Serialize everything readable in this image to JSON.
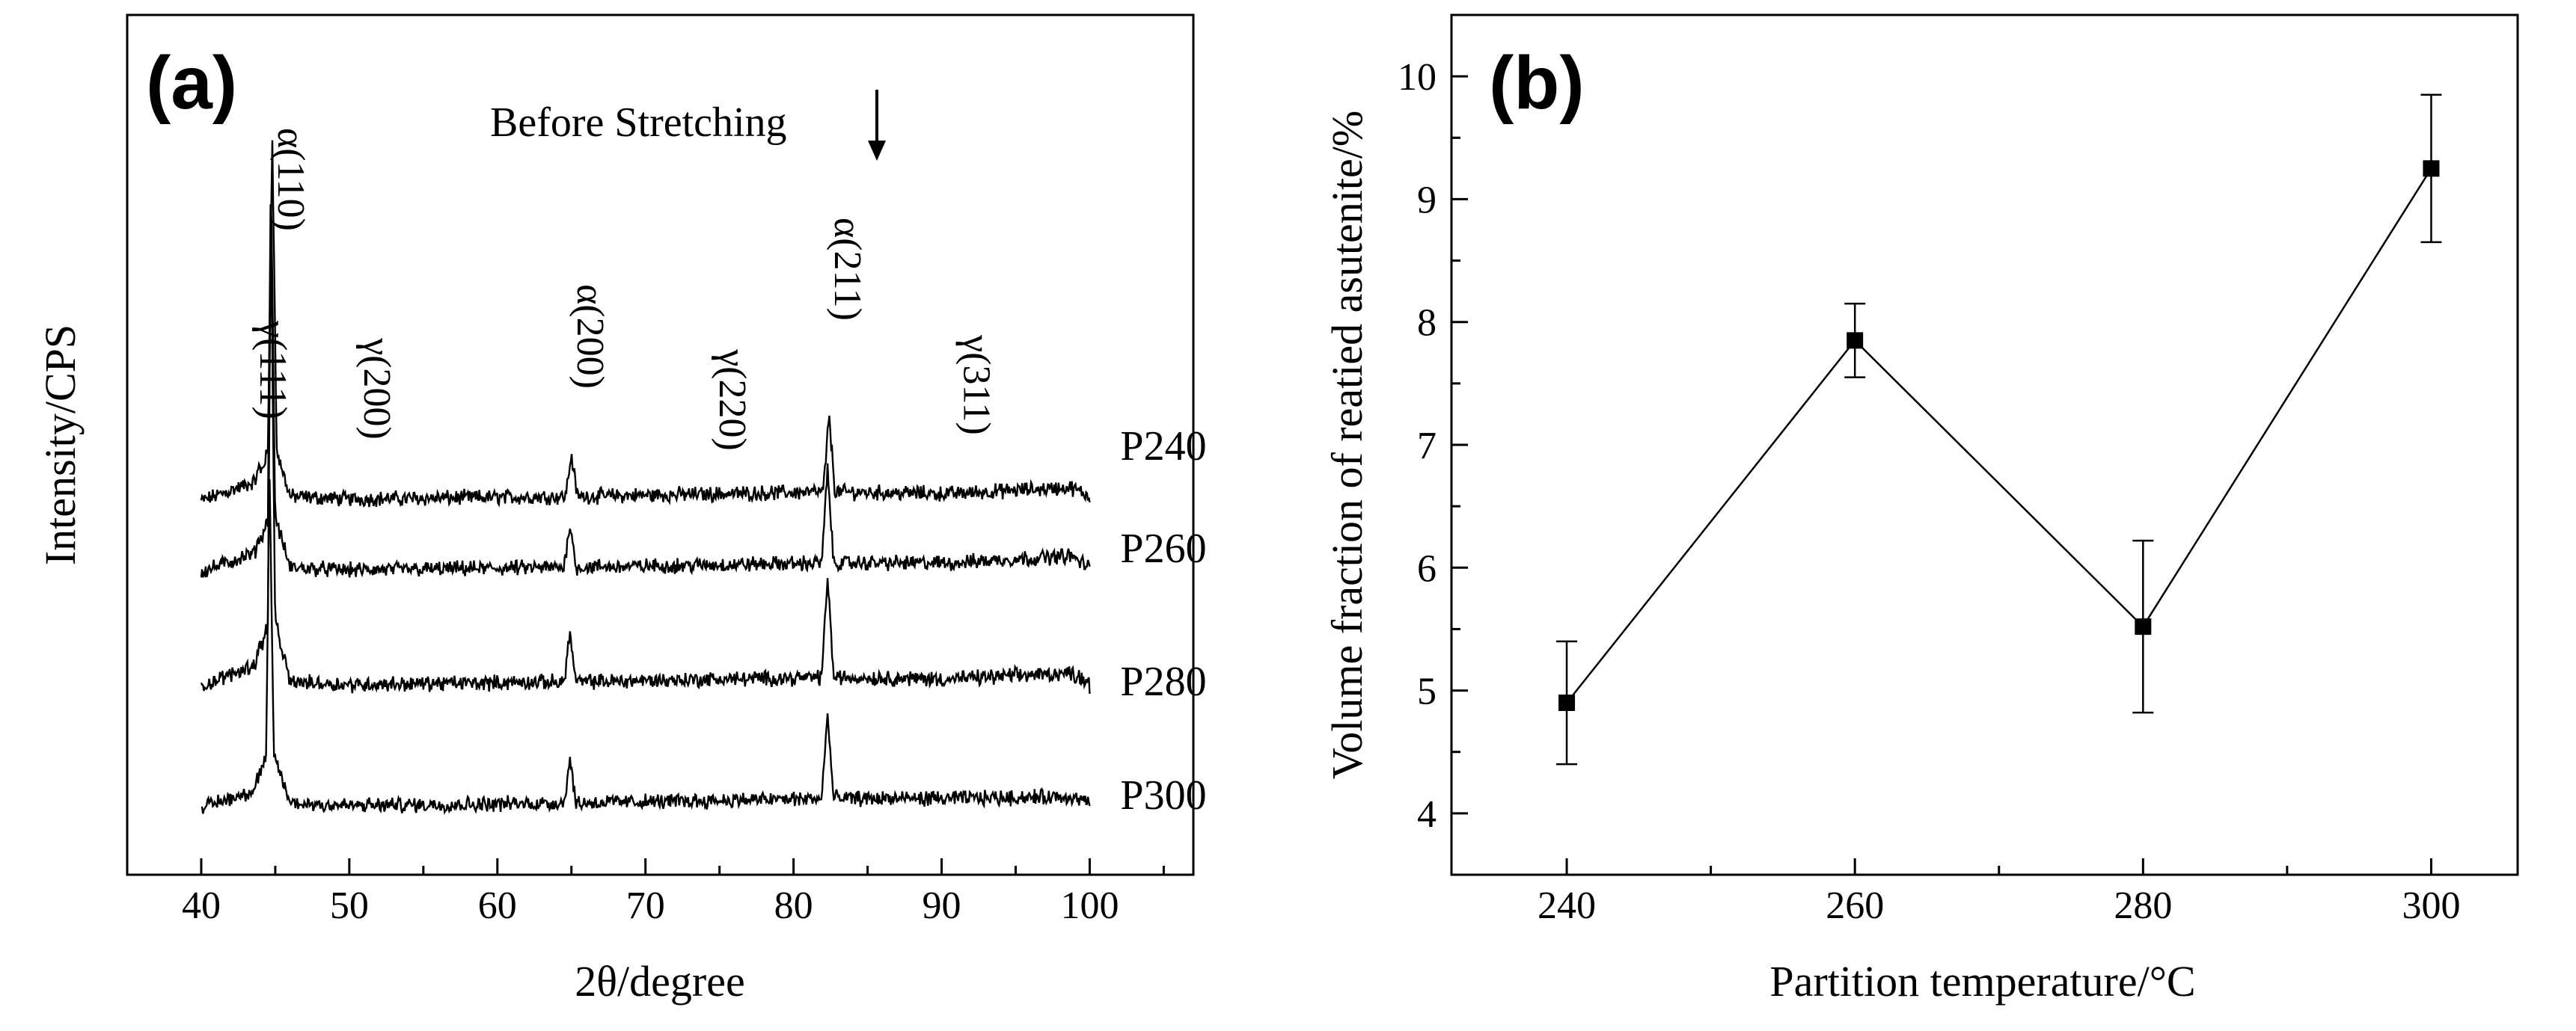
{
  "chart_data": [
    {
      "panel": "(a)",
      "type": "line",
      "title": "",
      "xlabel": "2θ/degree",
      "ylabel": "Intensity/CPS",
      "xlim": [
        35,
        107
      ],
      "xticks": [
        40,
        50,
        60,
        70,
        80,
        90,
        100
      ],
      "grid": false,
      "annotation": "Before Stretching",
      "series": [
        {
          "name": "P240",
          "peak_profile": [
            [
              40,
              0.0
            ],
            [
              43.6,
              0.12
            ],
            [
              44.5,
              0.55
            ],
            [
              44.8,
              4.1
            ],
            [
              45.1,
              0.55
            ],
            [
              46,
              0.05
            ],
            [
              50,
              0.02
            ],
            [
              64.6,
              0.05
            ],
            [
              65.0,
              0.52
            ],
            [
              65.4,
              0.05
            ],
            [
              82.0,
              0.1
            ],
            [
              82.4,
              0.95
            ],
            [
              82.8,
              0.1
            ],
            [
              90.5,
              0.08
            ],
            [
              98.7,
              0.15
            ],
            [
              100,
              0.05
            ]
          ]
        },
        {
          "name": "P260",
          "peak_profile": [
            [
              40,
              0.0
            ],
            [
              43.6,
              0.12
            ],
            [
              44.5,
              0.6
            ],
            [
              44.7,
              4.5
            ],
            [
              45.0,
              0.6
            ],
            [
              46,
              0.05
            ],
            [
              50,
              0.02
            ],
            [
              64.5,
              0.05
            ],
            [
              64.9,
              0.55
            ],
            [
              65.3,
              0.05
            ],
            [
              81.9,
              0.1
            ],
            [
              82.3,
              1.15
            ],
            [
              82.7,
              0.1
            ],
            [
              90.5,
              0.1
            ],
            [
              98.7,
              0.18
            ],
            [
              100,
              0.05
            ]
          ]
        },
        {
          "name": "P280",
          "peak_profile": [
            [
              40,
              0.0
            ],
            [
              43.6,
              0.15
            ],
            [
              44.5,
              0.7
            ],
            [
              44.7,
              5.2
            ],
            [
              45.0,
              0.7
            ],
            [
              46,
              0.05
            ],
            [
              50,
              0.02
            ],
            [
              64.5,
              0.05
            ],
            [
              64.9,
              0.6
            ],
            [
              65.3,
              0.05
            ],
            [
              81.9,
              0.1
            ],
            [
              82.3,
              1.25
            ],
            [
              82.7,
              0.1
            ],
            [
              90.5,
              0.08
            ],
            [
              98.7,
              0.15
            ],
            [
              100,
              0.05
            ]
          ]
        },
        {
          "name": "P300",
          "peak_profile": [
            [
              40,
              0.0
            ],
            [
              43.6,
              0.1
            ],
            [
              44.4,
              0.6
            ],
            [
              44.6,
              3.8
            ],
            [
              44.9,
              0.6
            ],
            [
              46,
              0.05
            ],
            [
              50,
              0.02
            ],
            [
              64.5,
              0.05
            ],
            [
              64.9,
              0.55
            ],
            [
              65.3,
              0.05
            ],
            [
              81.9,
              0.1
            ],
            [
              82.3,
              1.05
            ],
            [
              82.7,
              0.1
            ],
            [
              90.5,
              0.1
            ],
            [
              98.7,
              0.12
            ],
            [
              100,
              0.05
            ]
          ]
        }
      ],
      "peak_annotations": [
        {
          "label": "γ(111)",
          "x": 43.5
        },
        {
          "label": "α(110)",
          "x": 44.7
        },
        {
          "label": "γ(200)",
          "x": 50.5
        },
        {
          "label": "α(200)",
          "x": 64.9
        },
        {
          "label": "γ(220)",
          "x": 74.5
        },
        {
          "label": "α(211)",
          "x": 82.3
        },
        {
          "label": "γ(311)",
          "x": 91.0
        }
      ]
    },
    {
      "panel": "(b)",
      "type": "line",
      "title": "",
      "xlabel": "Partition temperature/°C",
      "ylabel": "Volume fraction of reatied asutenite/%",
      "x": [
        240,
        260,
        280,
        300
      ],
      "values": [
        4.9,
        7.85,
        5.52,
        9.25
      ],
      "errors": [
        0.5,
        0.3,
        0.7,
        0.6
      ],
      "xlim": [
        232,
        306
      ],
      "ylim": [
        3.5,
        10.5
      ],
      "xticks": [
        240,
        260,
        280,
        300
      ],
      "yticks": [
        4,
        5,
        6,
        7,
        8,
        9,
        10
      ],
      "grid": false
    }
  ]
}
